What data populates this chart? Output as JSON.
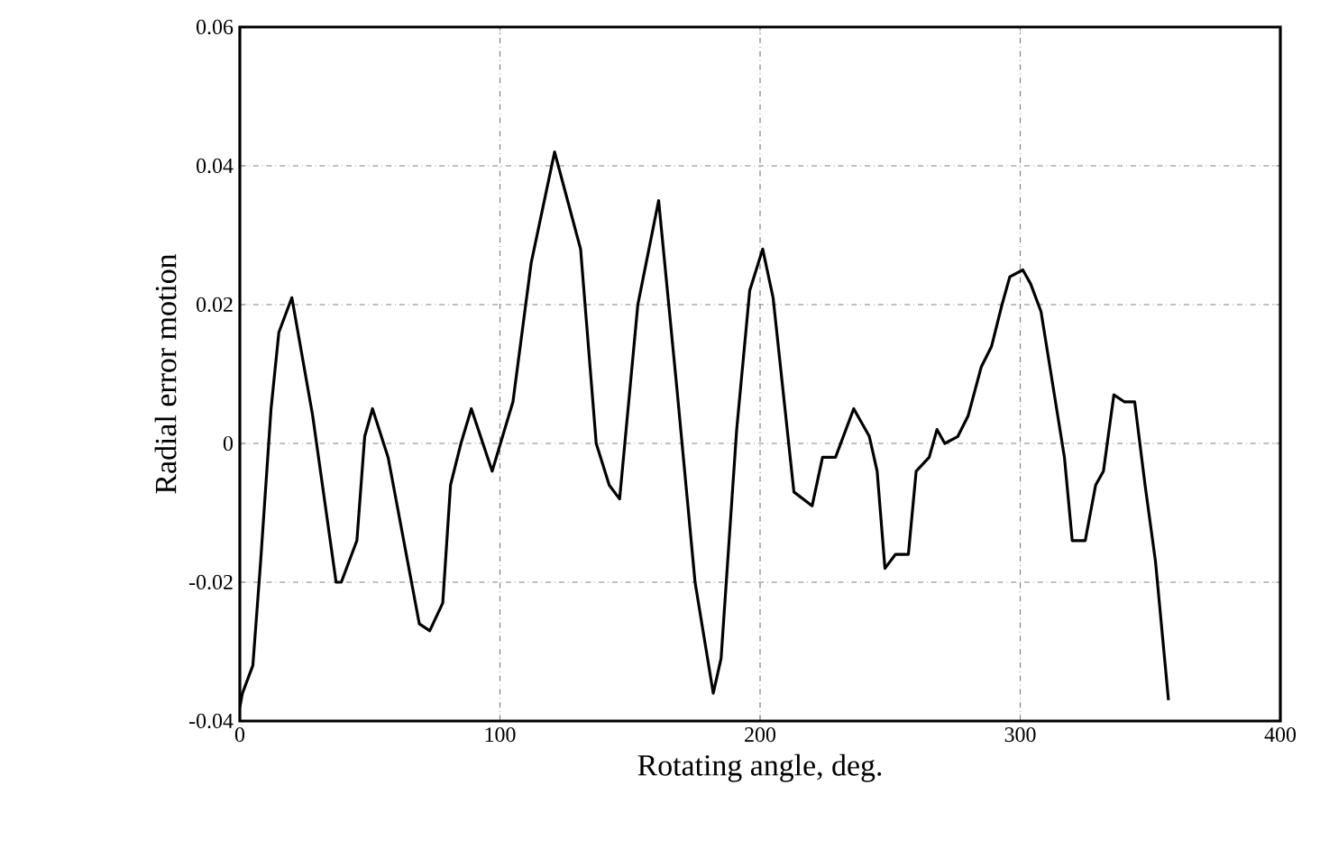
{
  "chart_data": {
    "type": "line",
    "xlabel": "Rotating angle, deg.",
    "ylabel": "Radial error motion",
    "x": [
      0,
      1,
      5,
      8,
      12,
      15,
      20,
      28,
      37,
      39,
      45,
      48,
      51,
      57,
      69,
      73,
      78,
      81,
      85,
      89,
      97,
      105,
      112,
      121,
      126,
      131,
      137,
      142,
      146,
      153,
      161,
      168,
      175,
      182,
      185,
      191,
      196,
      201,
      205,
      213,
      220,
      224,
      229,
      236,
      242,
      245,
      248,
      252,
      257,
      260,
      265,
      268,
      271,
      276,
      280,
      285,
      289,
      293,
      296,
      301,
      304,
      308,
      317,
      320,
      325,
      329,
      332,
      336,
      340,
      344,
      348,
      352,
      357
    ],
    "series": [
      {
        "color": "#000000",
        "values": [
          -0.038,
          -0.036,
          -0.032,
          -0.017,
          0.005,
          0.016,
          0.021,
          0.004,
          -0.02,
          -0.02,
          -0.014,
          0.001,
          0.005,
          -0.002,
          -0.026,
          -0.027,
          -0.023,
          -0.006,
          0.0,
          0.005,
          -0.004,
          0.006,
          0.026,
          0.042,
          0.035,
          0.028,
          0.0,
          -0.006,
          -0.008,
          0.02,
          0.035,
          0.008,
          -0.02,
          -0.036,
          -0.031,
          0.002,
          0.022,
          0.028,
          0.021,
          -0.007,
          -0.009,
          -0.002,
          -0.002,
          0.005,
          0.001,
          -0.004,
          -0.018,
          -0.016,
          -0.016,
          -0.004,
          -0.002,
          0.002,
          0.0,
          0.001,
          0.004,
          0.011,
          0.014,
          0.02,
          0.024,
          0.025,
          0.023,
          0.019,
          -0.002,
          -0.014,
          -0.014,
          -0.006,
          -0.004,
          0.007,
          0.006,
          0.006,
          -0.006,
          -0.017,
          -0.037
        ]
      }
    ],
    "xlim": [
      0,
      400
    ],
    "ylim": [
      -0.04,
      0.06
    ],
    "xticks": [
      0,
      100,
      200,
      300,
      400
    ],
    "yticks": [
      -0.04,
      -0.02,
      0,
      0.02,
      0.04,
      0.06
    ],
    "grid": true
  }
}
